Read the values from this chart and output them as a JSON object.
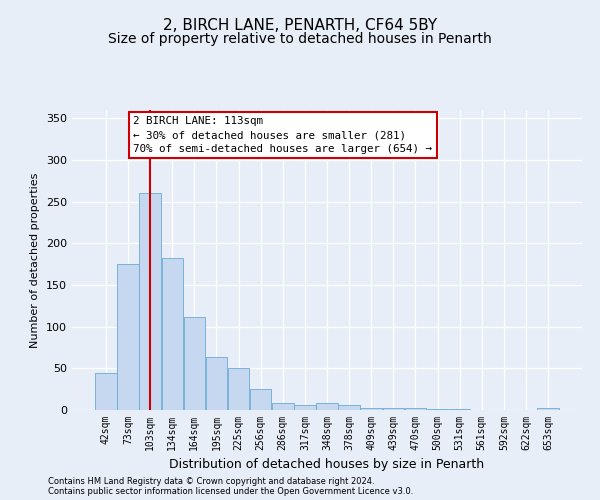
{
  "title1": "2, BIRCH LANE, PENARTH, CF64 5BY",
  "title2": "Size of property relative to detached houses in Penarth",
  "xlabel": "Distribution of detached houses by size in Penarth",
  "ylabel": "Number of detached properties",
  "footer1": "Contains HM Land Registry data © Crown copyright and database right 2024.",
  "footer2": "Contains public sector information licensed under the Open Government Licence v3.0.",
  "categories": [
    "42sqm",
    "73sqm",
    "103sqm",
    "134sqm",
    "164sqm",
    "195sqm",
    "225sqm",
    "256sqm",
    "286sqm",
    "317sqm",
    "348sqm",
    "378sqm",
    "409sqm",
    "439sqm",
    "470sqm",
    "500sqm",
    "531sqm",
    "561sqm",
    "592sqm",
    "622sqm",
    "653sqm"
  ],
  "values": [
    44,
    175,
    261,
    183,
    112,
    64,
    50,
    25,
    8,
    6,
    8,
    6,
    3,
    3,
    2,
    1,
    1,
    0,
    0,
    0,
    3
  ],
  "bar_color": "#c5d8f0",
  "bar_edge_color": "#6aaad4",
  "red_line_x": 2,
  "annotation_title": "2 BIRCH LANE: 113sqm",
  "annotation_line1": "← 30% of detached houses are smaller (281)",
  "annotation_line2": "70% of semi-detached houses are larger (654) →",
  "annotation_box_color": "#ffffff",
  "annotation_box_edge": "#cc0000",
  "red_line_color": "#cc0000",
  "ylim": [
    0,
    360
  ],
  "yticks": [
    0,
    50,
    100,
    150,
    200,
    250,
    300,
    350
  ],
  "background_color": "#e8eef8",
  "plot_bg_color": "#e8eef8",
  "grid_color": "#ffffff",
  "title_fontsize": 11,
  "subtitle_fontsize": 10,
  "ylabel_fontsize": 8,
  "xlabel_fontsize": 9,
  "footer_fontsize": 6,
  "tick_fontsize": 7,
  "ytick_fontsize": 8
}
